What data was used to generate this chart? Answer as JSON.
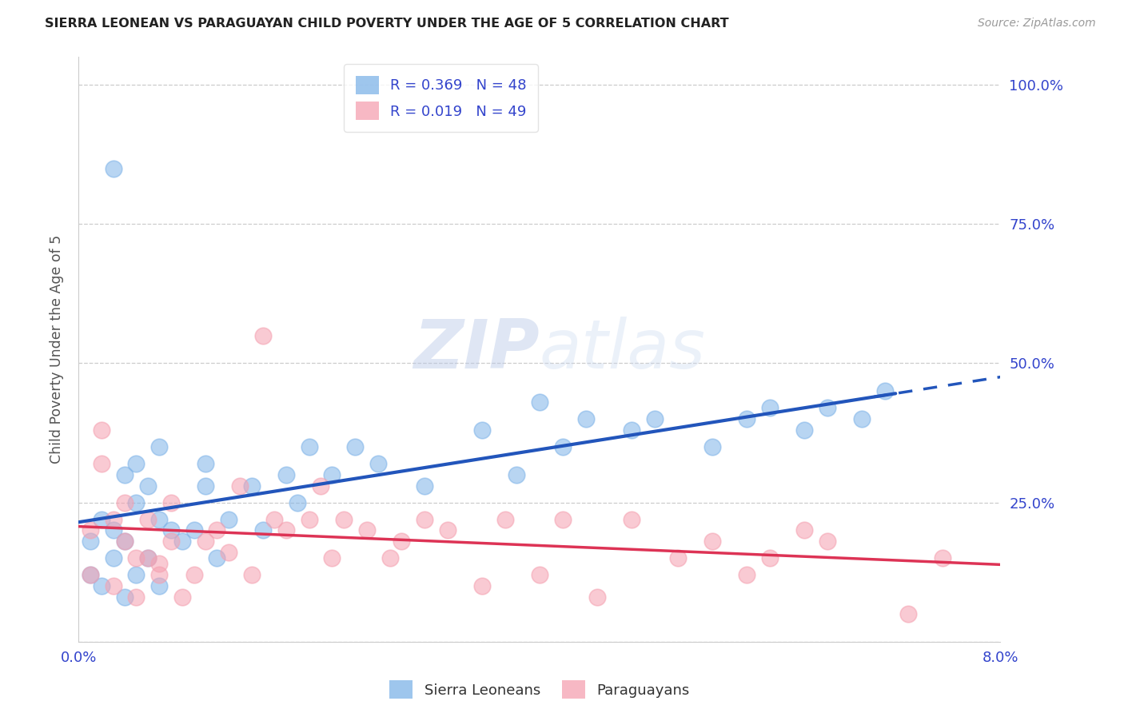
{
  "title": "SIERRA LEONEAN VS PARAGUAYAN CHILD POVERTY UNDER THE AGE OF 5 CORRELATION CHART",
  "source": "Source: ZipAtlas.com",
  "ylabel": "Child Poverty Under the Age of 5",
  "legend_label1": "Sierra Leoneans",
  "legend_label2": "Paraguayans",
  "blue_scatter_color": "#7EB3E8",
  "pink_scatter_color": "#F5A0B0",
  "blue_line_color": "#2255BB",
  "pink_line_color": "#DD3355",
  "axis_tick_color": "#3344CC",
  "R_sierra": 0.369,
  "N_sierra": 48,
  "R_para": 0.019,
  "N_para": 49,
  "xlim": [
    0.0,
    0.08
  ],
  "ylim": [
    0.0,
    1.05
  ],
  "sierra_x": [
    0.001,
    0.001,
    0.002,
    0.002,
    0.003,
    0.003,
    0.003,
    0.004,
    0.004,
    0.004,
    0.005,
    0.005,
    0.005,
    0.006,
    0.006,
    0.007,
    0.007,
    0.007,
    0.008,
    0.009,
    0.01,
    0.011,
    0.011,
    0.012,
    0.013,
    0.015,
    0.016,
    0.018,
    0.019,
    0.02,
    0.022,
    0.024,
    0.026,
    0.03,
    0.035,
    0.038,
    0.04,
    0.042,
    0.044,
    0.048,
    0.05,
    0.055,
    0.058,
    0.06,
    0.063,
    0.065,
    0.068,
    0.07
  ],
  "sierra_y": [
    0.12,
    0.18,
    0.1,
    0.22,
    0.15,
    0.2,
    0.85,
    0.08,
    0.18,
    0.3,
    0.12,
    0.25,
    0.32,
    0.15,
    0.28,
    0.1,
    0.22,
    0.35,
    0.2,
    0.18,
    0.2,
    0.28,
    0.32,
    0.15,
    0.22,
    0.28,
    0.2,
    0.3,
    0.25,
    0.35,
    0.3,
    0.35,
    0.32,
    0.28,
    0.38,
    0.3,
    0.43,
    0.35,
    0.4,
    0.38,
    0.4,
    0.35,
    0.4,
    0.42,
    0.38,
    0.42,
    0.4,
    0.45
  ],
  "para_x": [
    0.001,
    0.001,
    0.002,
    0.002,
    0.003,
    0.003,
    0.004,
    0.004,
    0.005,
    0.005,
    0.006,
    0.006,
    0.007,
    0.007,
    0.008,
    0.008,
    0.009,
    0.01,
    0.011,
    0.012,
    0.013,
    0.014,
    0.015,
    0.016,
    0.017,
    0.018,
    0.02,
    0.021,
    0.022,
    0.023,
    0.025,
    0.027,
    0.028,
    0.03,
    0.032,
    0.035,
    0.037,
    0.04,
    0.042,
    0.045,
    0.048,
    0.052,
    0.055,
    0.058,
    0.06,
    0.063,
    0.065,
    0.072,
    0.075
  ],
  "para_y": [
    0.12,
    0.2,
    0.38,
    0.32,
    0.22,
    0.1,
    0.18,
    0.25,
    0.08,
    0.15,
    0.15,
    0.22,
    0.14,
    0.12,
    0.25,
    0.18,
    0.08,
    0.12,
    0.18,
    0.2,
    0.16,
    0.28,
    0.12,
    0.55,
    0.22,
    0.2,
    0.22,
    0.28,
    0.15,
    0.22,
    0.2,
    0.15,
    0.18,
    0.22,
    0.2,
    0.1,
    0.22,
    0.12,
    0.22,
    0.08,
    0.22,
    0.15,
    0.18,
    0.12,
    0.15,
    0.2,
    0.18,
    0.05,
    0.15
  ]
}
